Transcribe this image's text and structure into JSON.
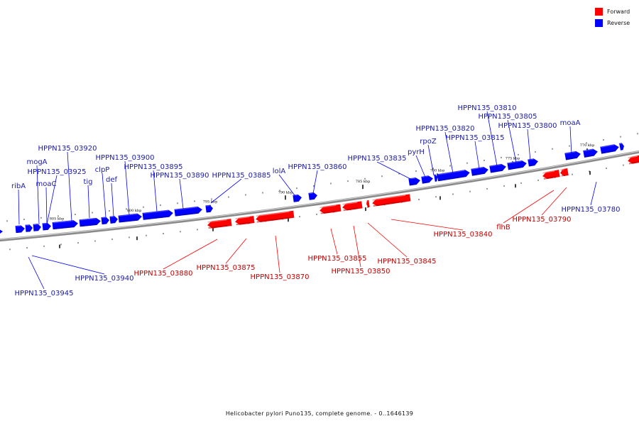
{
  "legend": {
    "forward": {
      "label": "Forward",
      "color": "#ff0000"
    },
    "reverse": {
      "label": "Reverse",
      "color": "#0000ff"
    }
  },
  "caption": "Helicobacter pylori Puno135, complete genome. - 0..1646139",
  "ticks": [
    {
      "label": "805 kbp"
    },
    {
      "label": "800 kbp"
    },
    {
      "label": "795 kbp"
    },
    {
      "label": "790 kbp"
    },
    {
      "label": "785 kbp"
    },
    {
      "label": "780 kbp"
    },
    {
      "label": "775 kbp"
    },
    {
      "label": "770 kbp"
    }
  ],
  "genes": [
    {
      "label": "ribA",
      "strand": "reverse"
    },
    {
      "label": "mogA",
      "strand": "reverse"
    },
    {
      "label": "HPPN135_03925",
      "strand": "reverse"
    },
    {
      "label": "moaC",
      "strand": "reverse"
    },
    {
      "label": "HPPN135_03920",
      "strand": "reverse"
    },
    {
      "label": "tig",
      "strand": "reverse"
    },
    {
      "label": "clpP",
      "strand": "reverse"
    },
    {
      "label": "def",
      "strand": "reverse"
    },
    {
      "label": "HPPN135_03900",
      "strand": "reverse"
    },
    {
      "label": "HPPN135_03895",
      "strand": "reverse"
    },
    {
      "label": "HPPN135_03890",
      "strand": "reverse"
    },
    {
      "label": "HPPN135_03885",
      "strand": "reverse"
    },
    {
      "label": "lolA",
      "strand": "reverse"
    },
    {
      "label": "HPPN135_03860",
      "strand": "reverse"
    },
    {
      "label": "HPPN135_03835",
      "strand": "reverse"
    },
    {
      "label": "pyrH",
      "strand": "reverse"
    },
    {
      "label": "rpoZ",
      "strand": "reverse"
    },
    {
      "label": "HPPN135_03820",
      "strand": "reverse"
    },
    {
      "label": "HPPN135_03815",
      "strand": "reverse"
    },
    {
      "label": "HPPN135_03810",
      "strand": "reverse"
    },
    {
      "label": "HPPN135_03805",
      "strand": "reverse"
    },
    {
      "label": "HPPN135_03800",
      "strand": "reverse"
    },
    {
      "label": "moaA",
      "strand": "reverse"
    },
    {
      "label": "HPPN135_03945",
      "strand": "reverse"
    },
    {
      "label": "HPPN135_03940",
      "strand": "reverse"
    },
    {
      "label": "HPPN135_03780",
      "strand": "reverse"
    },
    {
      "label": "HPPN135_03880",
      "strand": "forward"
    },
    {
      "label": "HPPN135_03875",
      "strand": "forward"
    },
    {
      "label": "HPPN135_03870",
      "strand": "forward"
    },
    {
      "label": "HPPN135_03855",
      "strand": "forward"
    },
    {
      "label": "HPPN135_03850",
      "strand": "forward"
    },
    {
      "label": "HPPN135_03845",
      "strand": "forward"
    },
    {
      "label": "HPPN135_03840",
      "strand": "forward"
    },
    {
      "label": "flhB",
      "strand": "forward"
    },
    {
      "label": "HPPN135_03790",
      "strand": "forward"
    }
  ]
}
